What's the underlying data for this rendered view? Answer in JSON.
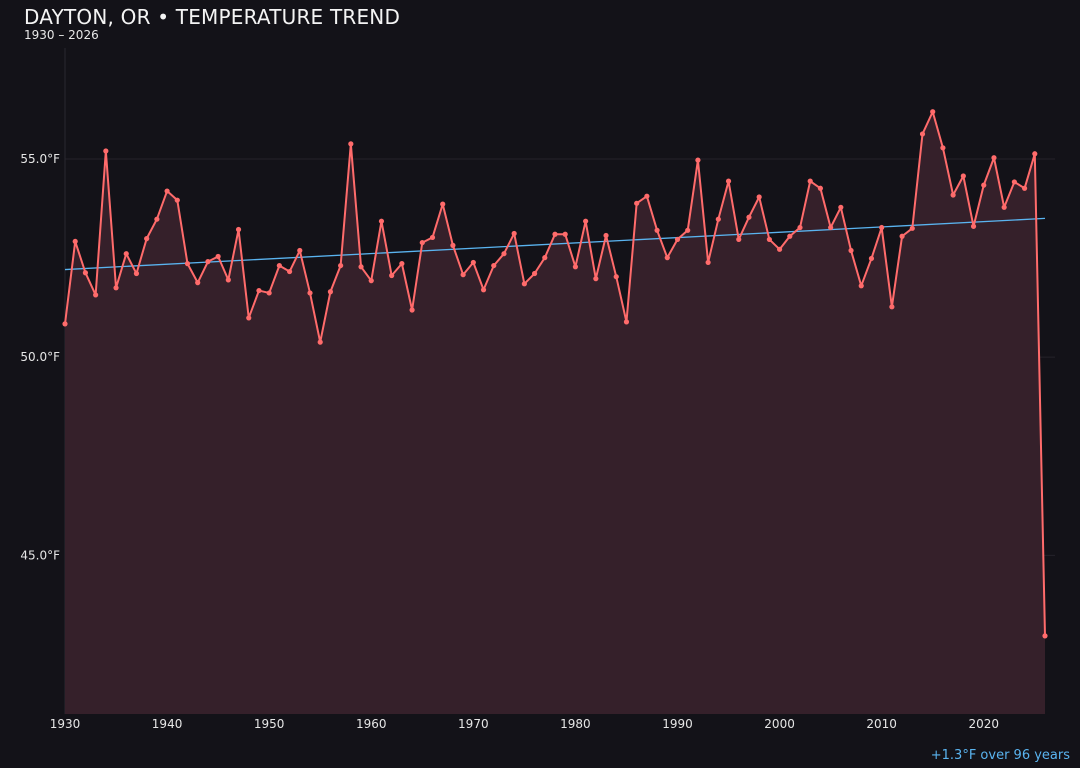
{
  "chart_data": {
    "type": "line",
    "title": "DAYTON, OR • TEMPERATURE TREND",
    "subtitle": "1930 – 2026",
    "annotation": "+1.3°F over 96 years",
    "xlabel": "",
    "ylabel": "",
    "xlim": [
      1930,
      2026
    ],
    "ylim": [
      41,
      58
    ],
    "grid": true,
    "x_ticks": [
      1930,
      1940,
      1950,
      1960,
      1970,
      1980,
      1990,
      2000,
      2010,
      2020
    ],
    "y_ticks": [
      45,
      50,
      55
    ],
    "y_tick_labels": [
      "45.0°F",
      "50.0°F",
      "55.0°F"
    ],
    "colors": {
      "line": "#ff6b6b",
      "fill": "#35202a",
      "trend": "#5ab4f0",
      "background": "#131218",
      "grid": "#24222a"
    },
    "x": [
      1930,
      1931,
      1932,
      1933,
      1934,
      1935,
      1936,
      1937,
      1938,
      1939,
      1940,
      1941,
      1942,
      1943,
      1944,
      1945,
      1946,
      1947,
      1948,
      1949,
      1950,
      1951,
      1952,
      1953,
      1954,
      1955,
      1956,
      1957,
      1958,
      1959,
      1960,
      1961,
      1962,
      1963,
      1964,
      1965,
      1966,
      1967,
      1968,
      1969,
      1970,
      1971,
      1972,
      1973,
      1974,
      1975,
      1976,
      1977,
      1978,
      1979,
      1980,
      1981,
      1982,
      1983,
      1984,
      1985,
      1986,
      1987,
      1988,
      1989,
      1990,
      1991,
      1992,
      1993,
      1994,
      1995,
      1996,
      1997,
      1998,
      1999,
      2000,
      2001,
      2002,
      2003,
      2004,
      2005,
      2006,
      2007,
      2008,
      2009,
      2010,
      2011,
      2012,
      2013,
      2014,
      2015,
      2016,
      2017,
      2018,
      2019,
      2020,
      2021,
      2022,
      2023,
      2024,
      2025,
      2026
    ],
    "series": [
      {
        "values": [
          50.84,
          52.92,
          52.13,
          51.57,
          55.2,
          51.75,
          52.61,
          52.11,
          52.99,
          53.48,
          54.19,
          53.96,
          52.36,
          51.88,
          52.41,
          52.54,
          51.95,
          53.22,
          50.99,
          51.68,
          51.62,
          52.31,
          52.16,
          52.69,
          51.62,
          50.38,
          51.65,
          52.31,
          55.38,
          52.28,
          51.93,
          53.43,
          52.06,
          52.36,
          51.19,
          52.89,
          53.02,
          53.86,
          52.82,
          52.08,
          52.39,
          51.7,
          52.31,
          52.61,
          53.12,
          51.85,
          52.11,
          52.51,
          53.1,
          53.1,
          52.28,
          53.43,
          51.98,
          53.07,
          52.03,
          50.89,
          53.88,
          54.06,
          53.2,
          52.51,
          52.97,
          53.2,
          54.97,
          52.39,
          53.48,
          54.44,
          52.97,
          53.53,
          54.04,
          52.97,
          52.72,
          53.05,
          53.27,
          54.44,
          54.26,
          53.27,
          53.78,
          52.69,
          51.8,
          52.49,
          53.27,
          51.27,
          53.05,
          53.25,
          55.63,
          56.19,
          55.28,
          54.09,
          54.57,
          53.3,
          54.34,
          55.03,
          53.78,
          54.42,
          54.26,
          55.13,
          42.97
        ]
      }
    ],
    "trend": {
      "start": [
        1930,
        52.21
      ],
      "end": [
        2026,
        53.5
      ]
    }
  }
}
